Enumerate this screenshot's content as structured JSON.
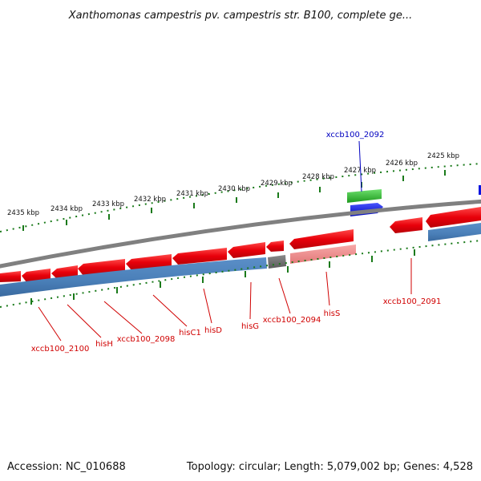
{
  "title": "Xanthomonas campestris pv. campestris str. B100, complete ge...",
  "footer": {
    "accession": "Accession: NC_010688",
    "summary": "Topology: circular; Length: 5,079,002 bp; Genes: 4,528"
  },
  "kbp_ticks": [
    "2435 kbp",
    "2434 kbp",
    "2433 kbp",
    "2432 kbp",
    "2431 kbp",
    "2430 kbp",
    "2429 kbp",
    "2428 kbp",
    "2427 kbp",
    "2426 kbp",
    "2425 kbp"
  ],
  "genes": {
    "xccb100_2092": "xccb100_2092",
    "xccb100_2091": "xccb100_2091",
    "hisS": "hisS",
    "xccb100_2094": "xccb100_2094",
    "hisG": "hisG",
    "hisD": "hisD",
    "hisC1": "hisC1",
    "xccb100_2098": "xccb100_2098",
    "hisH": "hisH",
    "xccb100_2100": "xccb100_2100"
  },
  "colors": {
    "cds_forward": "#e8000a",
    "cds_pseudo": "#f08080",
    "gene_track": "#4a7fb8",
    "gene_pseudo": "#6e6e6e",
    "rrna_green": "#2db82d",
    "rrna_blue": "#0a14e0",
    "backbone": "#808080",
    "tick": "#1a7a1a",
    "label_red": "#d00000",
    "label_blue": "#0000c0"
  }
}
